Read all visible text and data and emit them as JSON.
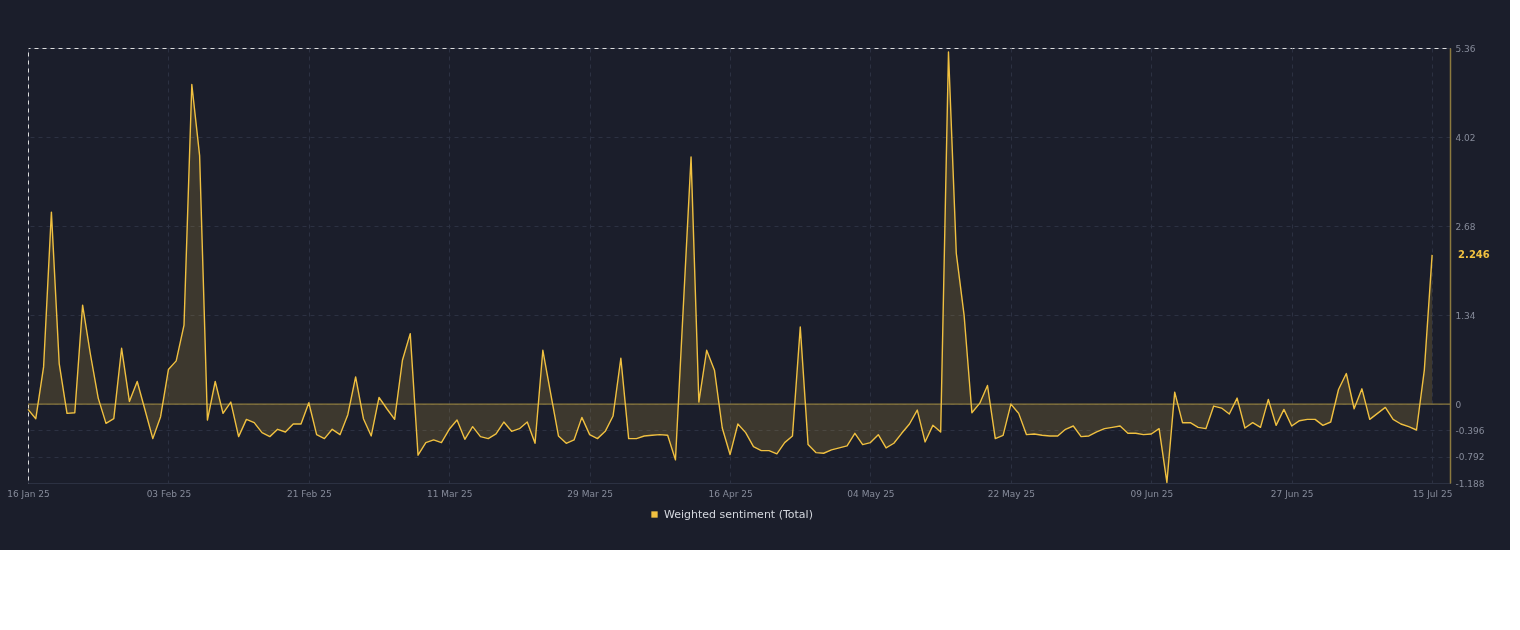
{
  "chart_data": {
    "type": "area",
    "x": [
      "2025-01-16",
      "2025-01-17",
      "2025-01-18",
      "2025-01-19",
      "2025-01-20",
      "2025-01-21",
      "2025-01-22",
      "2025-01-23",
      "2025-01-24",
      "2025-01-25",
      "2025-01-26",
      "2025-01-27",
      "2025-01-28",
      "2025-01-29",
      "2025-01-30",
      "2025-01-31",
      "2025-02-01",
      "2025-02-02",
      "2025-02-03",
      "2025-02-04",
      "2025-02-05",
      "2025-02-06",
      "2025-02-07",
      "2025-02-08",
      "2025-02-09",
      "2025-02-10",
      "2025-02-11",
      "2025-02-12",
      "2025-02-13",
      "2025-02-14",
      "2025-02-15",
      "2025-02-16",
      "2025-02-17",
      "2025-02-18",
      "2025-02-19",
      "2025-02-20",
      "2025-02-21",
      "2025-02-22",
      "2025-02-23",
      "2025-02-24",
      "2025-02-25",
      "2025-02-26",
      "2025-02-27",
      "2025-02-28",
      "2025-03-01",
      "2025-03-02",
      "2025-03-03",
      "2025-03-04",
      "2025-03-05",
      "2025-03-06",
      "2025-03-07",
      "2025-03-08",
      "2025-03-09",
      "2025-03-10",
      "2025-03-11",
      "2025-03-12",
      "2025-03-13",
      "2025-03-14",
      "2025-03-15",
      "2025-03-16",
      "2025-03-17",
      "2025-03-18",
      "2025-03-19",
      "2025-03-20",
      "2025-03-21",
      "2025-03-22",
      "2025-03-23",
      "2025-03-24",
      "2025-03-25",
      "2025-03-26",
      "2025-03-27",
      "2025-03-28",
      "2025-03-29",
      "2025-03-30",
      "2025-03-31",
      "2025-04-01",
      "2025-04-02",
      "2025-04-03",
      "2025-04-04",
      "2025-04-05",
      "2025-04-06",
      "2025-04-07",
      "2025-04-08",
      "2025-04-09",
      "2025-04-10",
      "2025-04-11",
      "2025-04-12",
      "2025-04-13",
      "2025-04-14",
      "2025-04-15",
      "2025-04-16",
      "2025-04-17",
      "2025-04-18",
      "2025-04-19",
      "2025-04-20",
      "2025-04-21",
      "2025-04-22",
      "2025-04-23",
      "2025-04-24",
      "2025-04-25",
      "2025-04-26",
      "2025-04-27",
      "2025-04-28",
      "2025-04-29",
      "2025-04-30",
      "2025-05-01",
      "2025-05-02",
      "2025-05-03",
      "2025-05-04",
      "2025-05-05",
      "2025-05-06",
      "2025-05-07",
      "2025-05-08",
      "2025-05-09",
      "2025-05-10",
      "2025-05-11",
      "2025-05-12",
      "2025-05-13",
      "2025-05-14",
      "2025-05-15",
      "2025-05-16",
      "2025-05-17",
      "2025-05-18",
      "2025-05-19",
      "2025-05-20",
      "2025-05-21",
      "2025-05-22",
      "2025-05-23",
      "2025-05-24",
      "2025-05-25",
      "2025-05-26",
      "2025-05-27",
      "2025-05-28",
      "2025-05-29",
      "2025-05-30",
      "2025-05-31",
      "2025-06-01",
      "2025-06-02",
      "2025-06-03",
      "2025-06-04",
      "2025-06-05",
      "2025-06-06",
      "2025-06-07",
      "2025-06-08",
      "2025-06-09",
      "2025-06-10",
      "2025-06-11",
      "2025-06-12",
      "2025-06-13",
      "2025-06-14",
      "2025-06-15",
      "2025-06-16",
      "2025-06-17",
      "2025-06-18",
      "2025-06-19",
      "2025-06-20",
      "2025-06-21",
      "2025-06-22",
      "2025-06-23",
      "2025-06-24",
      "2025-06-25",
      "2025-06-26",
      "2025-06-27",
      "2025-06-28",
      "2025-06-29",
      "2025-06-30",
      "2025-07-01",
      "2025-07-02",
      "2025-07-03",
      "2025-07-04",
      "2025-07-05",
      "2025-07-06",
      "2025-07-07",
      "2025-07-08",
      "2025-07-09",
      "2025-07-10",
      "2025-07-11",
      "2025-07-12",
      "2025-07-13",
      "2025-07-14",
      "2025-07-15"
    ],
    "series": [
      {
        "name": "Weighted sentiment (Total)",
        "color": "#f0c040",
        "values": [
          -0.08,
          -0.22,
          0.56,
          2.89,
          0.61,
          -0.14,
          -0.13,
          1.49,
          0.75,
          0.09,
          -0.29,
          -0.22,
          0.84,
          0.04,
          0.34,
          -0.09,
          -0.52,
          -0.19,
          0.52,
          0.65,
          1.19,
          4.81,
          3.74,
          -0.24,
          0.34,
          -0.14,
          0.03,
          -0.49,
          -0.23,
          -0.28,
          -0.43,
          -0.49,
          -0.38,
          -0.42,
          -0.3,
          -0.3,
          0.02,
          -0.46,
          -0.52,
          -0.38,
          -0.46,
          -0.16,
          0.41,
          -0.22,
          -0.48,
          0.1,
          -0.07,
          -0.23,
          0.66,
          1.06,
          -0.77,
          -0.58,
          -0.54,
          -0.58,
          -0.38,
          -0.24,
          -0.53,
          -0.34,
          -0.49,
          -0.52,
          -0.45,
          -0.27,
          -0.41,
          -0.37,
          -0.27,
          -0.59,
          0.81,
          0.16,
          -0.48,
          -0.59,
          -0.54,
          -0.2,
          -0.46,
          -0.52,
          -0.41,
          -0.18,
          0.69,
          -0.52,
          -0.52,
          -0.48,
          -0.47,
          -0.46,
          -0.47,
          -0.84,
          1.45,
          3.72,
          0.03,
          0.81,
          0.51,
          -0.36,
          -0.76,
          -0.3,
          -0.43,
          -0.64,
          -0.7,
          -0.7,
          -0.75,
          -0.58,
          -0.48,
          1.16,
          -0.61,
          -0.73,
          -0.74,
          -0.69,
          -0.66,
          -0.63,
          -0.44,
          -0.61,
          -0.58,
          -0.46,
          -0.66,
          -0.59,
          -0.44,
          -0.3,
          -0.09,
          -0.57,
          -0.32,
          -0.42,
          5.3,
          2.27,
          1.34,
          -0.13,
          0.01,
          0.28,
          -0.52,
          -0.47,
          0.0,
          -0.14,
          -0.46,
          -0.45,
          -0.47,
          -0.48,
          -0.48,
          -0.38,
          -0.33,
          -0.49,
          -0.48,
          -0.42,
          -0.37,
          -0.35,
          -0.33,
          -0.44,
          -0.44,
          -0.46,
          -0.45,
          -0.37,
          -1.18,
          0.18,
          -0.28,
          -0.28,
          -0.35,
          -0.37,
          -0.03,
          -0.06,
          -0.15,
          0.09,
          -0.36,
          -0.28,
          -0.35,
          0.07,
          -0.32,
          -0.08,
          -0.33,
          -0.25,
          -0.23,
          -0.23,
          -0.32,
          -0.27,
          0.22,
          0.46,
          -0.07,
          0.23,
          -0.23,
          -0.14,
          -0.05,
          -0.23,
          -0.3,
          -0.34,
          -0.39,
          0.51,
          2.246
        ]
      }
    ],
    "xlim": [
      "2025-01-16",
      "2025-07-17T07:00"
    ],
    "xticks": [
      {
        "value": "2025-01-16",
        "label": "16 Jan 25"
      },
      {
        "value": "2025-02-03",
        "label": "03 Feb 25"
      },
      {
        "value": "2025-02-21",
        "label": "21 Feb 25"
      },
      {
        "value": "2025-03-11",
        "label": "11 Mar 25"
      },
      {
        "value": "2025-03-29",
        "label": "29 Mar 25"
      },
      {
        "value": "2025-04-16",
        "label": "16 Apr 25"
      },
      {
        "value": "2025-05-04",
        "label": "04 May 25"
      },
      {
        "value": "2025-05-22",
        "label": "22 May 25"
      },
      {
        "value": "2025-06-09",
        "label": "09 Jun 25"
      },
      {
        "value": "2025-06-27",
        "label": "27 Jun 25"
      },
      {
        "value": "2025-07-15",
        "label": "15 Jul 25"
      }
    ],
    "ylim": [
      -1.188,
      5.36
    ],
    "yticks": [
      5.36,
      4.02,
      2.68,
      1.34,
      0,
      -0.396,
      -0.792,
      -1.188
    ],
    "ref_lines": [
      {
        "axis": "y",
        "value": 0,
        "color": "#8c7a3e"
      }
    ],
    "annotations": [
      {
        "text": "2.246",
        "x": "2025-07-15",
        "y": 2.246
      }
    ],
    "grid": true,
    "legend": "bottom"
  }
}
